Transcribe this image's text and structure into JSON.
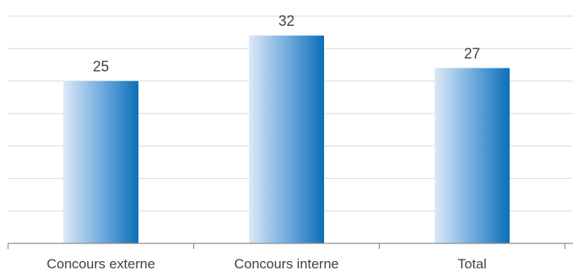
{
  "chart_data": {
    "type": "bar",
    "categories": [
      "Concours externe",
      "Concours interne",
      "Total"
    ],
    "values": [
      25,
      32,
      27
    ],
    "data_labels": [
      "25",
      "32",
      "27"
    ],
    "title": "",
    "xlabel": "",
    "ylabel": "",
    "ylim": [
      0,
      35
    ],
    "y_gridline_step": 5,
    "grid": true,
    "y_axis_labels_shown": false,
    "legend": "none",
    "colors": {
      "bar_gradient_start": "#dbe9f7",
      "bar_gradient_end": "#0b6fb8",
      "gridline": "#d9d9d9",
      "axis": "#8c8c8c",
      "text": "#404040"
    }
  }
}
